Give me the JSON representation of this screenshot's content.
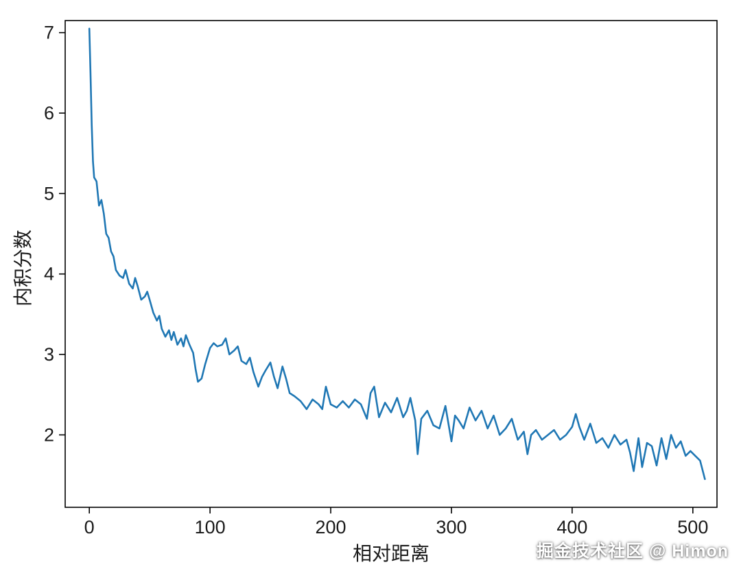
{
  "chart_data": {
    "type": "line",
    "title": "",
    "xlabel": "相对距离",
    "ylabel": "内积分数",
    "xlim": [
      -20,
      520
    ],
    "ylim": [
      1.1,
      7.15
    ],
    "xticks": [
      0,
      100,
      200,
      300,
      400,
      500
    ],
    "yticks": [
      2,
      3,
      4,
      5,
      6,
      7
    ],
    "grid": false,
    "legend": "none",
    "line_color": "#1f77b4",
    "points": [
      [
        0,
        7.05
      ],
      [
        1,
        6.5
      ],
      [
        2,
        5.85
      ],
      [
        3,
        5.4
      ],
      [
        4,
        5.2
      ],
      [
        6,
        5.15
      ],
      [
        8,
        4.85
      ],
      [
        10,
        4.92
      ],
      [
        12,
        4.75
      ],
      [
        14,
        4.5
      ],
      [
        16,
        4.45
      ],
      [
        18,
        4.28
      ],
      [
        20,
        4.22
      ],
      [
        22,
        4.05
      ],
      [
        25,
        3.98
      ],
      [
        28,
        3.95
      ],
      [
        30,
        4.05
      ],
      [
        33,
        3.88
      ],
      [
        36,
        3.82
      ],
      [
        38,
        3.95
      ],
      [
        40,
        3.85
      ],
      [
        43,
        3.68
      ],
      [
        46,
        3.72
      ],
      [
        48,
        3.78
      ],
      [
        50,
        3.68
      ],
      [
        53,
        3.52
      ],
      [
        56,
        3.42
      ],
      [
        58,
        3.48
      ],
      [
        60,
        3.32
      ],
      [
        63,
        3.22
      ],
      [
        66,
        3.3
      ],
      [
        68,
        3.18
      ],
      [
        70,
        3.28
      ],
      [
        73,
        3.12
      ],
      [
        76,
        3.2
      ],
      [
        78,
        3.1
      ],
      [
        80,
        3.24
      ],
      [
        83,
        3.12
      ],
      [
        86,
        3.02
      ],
      [
        88,
        2.82
      ],
      [
        90,
        2.66
      ],
      [
        93,
        2.7
      ],
      [
        96,
        2.88
      ],
      [
        100,
        3.08
      ],
      [
        103,
        3.14
      ],
      [
        106,
        3.1
      ],
      [
        110,
        3.12
      ],
      [
        113,
        3.2
      ],
      [
        116,
        3.0
      ],
      [
        120,
        3.05
      ],
      [
        123,
        3.1
      ],
      [
        126,
        2.92
      ],
      [
        130,
        2.88
      ],
      [
        133,
        2.96
      ],
      [
        136,
        2.78
      ],
      [
        140,
        2.6
      ],
      [
        143,
        2.72
      ],
      [
        146,
        2.8
      ],
      [
        150,
        2.9
      ],
      [
        153,
        2.72
      ],
      [
        156,
        2.58
      ],
      [
        160,
        2.85
      ],
      [
        163,
        2.7
      ],
      [
        166,
        2.52
      ],
      [
        170,
        2.48
      ],
      [
        175,
        2.42
      ],
      [
        180,
        2.32
      ],
      [
        185,
        2.44
      ],
      [
        190,
        2.38
      ],
      [
        193,
        2.32
      ],
      [
        196,
        2.6
      ],
      [
        200,
        2.38
      ],
      [
        205,
        2.34
      ],
      [
        210,
        2.42
      ],
      [
        215,
        2.34
      ],
      [
        220,
        2.44
      ],
      [
        225,
        2.38
      ],
      [
        230,
        2.2
      ],
      [
        233,
        2.52
      ],
      [
        236,
        2.6
      ],
      [
        240,
        2.22
      ],
      [
        245,
        2.4
      ],
      [
        250,
        2.28
      ],
      [
        255,
        2.46
      ],
      [
        260,
        2.22
      ],
      [
        263,
        2.3
      ],
      [
        266,
        2.46
      ],
      [
        270,
        2.18
      ],
      [
        272,
        1.76
      ],
      [
        275,
        2.2
      ],
      [
        280,
        2.3
      ],
      [
        285,
        2.12
      ],
      [
        290,
        2.08
      ],
      [
        295,
        2.36
      ],
      [
        300,
        1.92
      ],
      [
        303,
        2.24
      ],
      [
        306,
        2.18
      ],
      [
        310,
        2.08
      ],
      [
        315,
        2.34
      ],
      [
        320,
        2.18
      ],
      [
        325,
        2.3
      ],
      [
        330,
        2.08
      ],
      [
        335,
        2.24
      ],
      [
        340,
        2.0
      ],
      [
        345,
        2.08
      ],
      [
        350,
        2.2
      ],
      [
        355,
        1.94
      ],
      [
        360,
        2.04
      ],
      [
        363,
        1.76
      ],
      [
        366,
        2.0
      ],
      [
        370,
        2.06
      ],
      [
        375,
        1.94
      ],
      [
        380,
        2.0
      ],
      [
        385,
        2.06
      ],
      [
        390,
        1.94
      ],
      [
        395,
        2.0
      ],
      [
        400,
        2.1
      ],
      [
        403,
        2.26
      ],
      [
        406,
        2.1
      ],
      [
        410,
        1.94
      ],
      [
        415,
        2.14
      ],
      [
        420,
        1.9
      ],
      [
        425,
        1.96
      ],
      [
        430,
        1.84
      ],
      [
        435,
        2.0
      ],
      [
        440,
        1.88
      ],
      [
        445,
        1.94
      ],
      [
        448,
        1.78
      ],
      [
        451,
        1.55
      ],
      [
        455,
        1.96
      ],
      [
        458,
        1.6
      ],
      [
        462,
        1.9
      ],
      [
        466,
        1.86
      ],
      [
        470,
        1.62
      ],
      [
        474,
        1.96
      ],
      [
        478,
        1.7
      ],
      [
        482,
        2.0
      ],
      [
        486,
        1.84
      ],
      [
        490,
        1.92
      ],
      [
        494,
        1.74
      ],
      [
        498,
        1.8
      ],
      [
        502,
        1.74
      ],
      [
        506,
        1.68
      ],
      [
        510,
        1.45
      ]
    ]
  },
  "watermark": {
    "text": "掘金技术社区 @ Himon"
  }
}
